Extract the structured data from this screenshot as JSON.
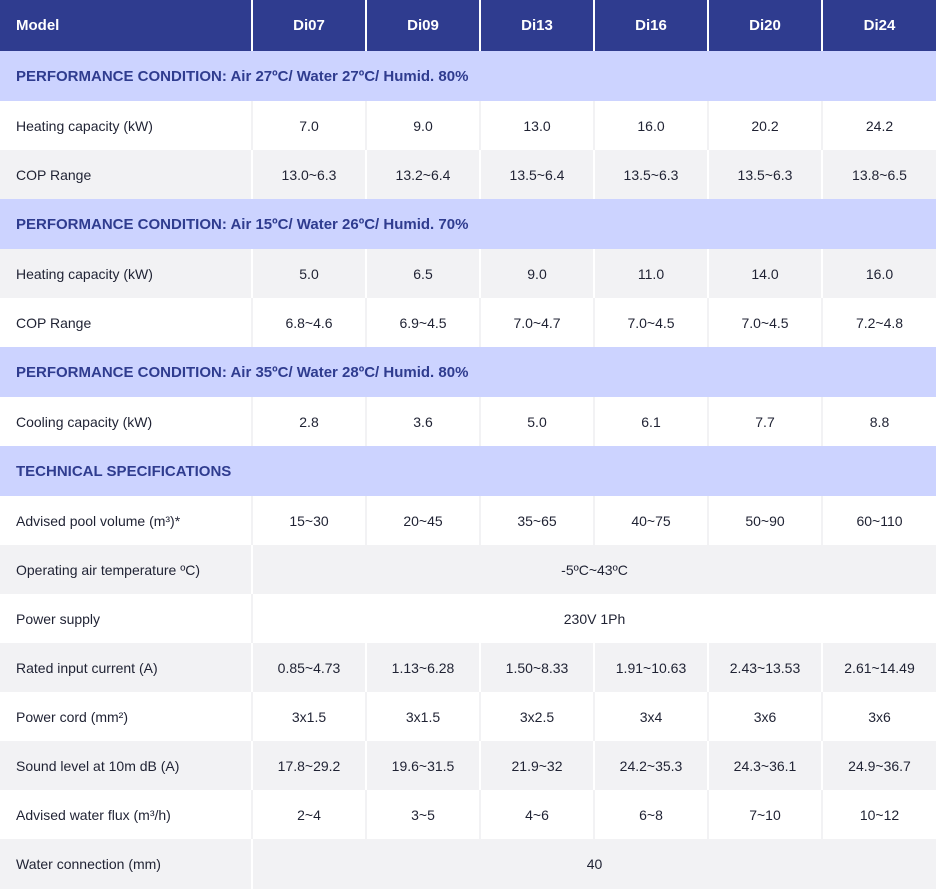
{
  "header": {
    "label": "Model",
    "models": [
      "Di07",
      "Di09",
      "Di13",
      "Di16",
      "Di20",
      "Di24"
    ]
  },
  "sections": [
    {
      "title": "PERFORMANCE CONDITION: Air 27ºC/ Water 27ºC/ Humid. 80%",
      "rows": [
        {
          "label": "Heating capacity (kW)",
          "values": [
            "7.0",
            "9.0",
            "13.0",
            "16.0",
            "20.2",
            "24.2"
          ]
        },
        {
          "label": "COP Range",
          "values": [
            "13.0~6.3",
            "13.2~6.4",
            "13.5~6.4",
            "13.5~6.3",
            "13.5~6.3",
            "13.8~6.5"
          ]
        }
      ]
    },
    {
      "title": "PERFORMANCE CONDITION: Air 15ºC/ Water 26ºC/ Humid. 70%",
      "rows": [
        {
          "label": "Heating capacity (kW)",
          "values": [
            "5.0",
            "6.5",
            "9.0",
            "11.0",
            "14.0",
            "16.0"
          ]
        },
        {
          "label": "COP Range",
          "values": [
            "6.8~4.6",
            "6.9~4.5",
            "7.0~4.7",
            "7.0~4.5",
            "7.0~4.5",
            "7.2~4.8"
          ]
        }
      ]
    },
    {
      "title": "PERFORMANCE CONDITION: Air 35ºC/ Water 28ºC/ Humid. 80%",
      "rows": [
        {
          "label": "Cooling capacity (kW)",
          "values": [
            "2.8",
            "3.6",
            "5.0",
            "6.1",
            "7.7",
            "8.8"
          ]
        }
      ]
    },
    {
      "title": "TECHNICAL SPECIFICATIONS",
      "rows": [
        {
          "label": "Advised pool volume (m³)*",
          "values": [
            "15~30",
            "20~45",
            "35~65",
            "40~75",
            "50~90",
            "60~110"
          ]
        },
        {
          "label": "Operating air temperature ºC)",
          "span": "-5ºC~43ºC"
        },
        {
          "label": "Power supply",
          "span": "230V 1Ph"
        },
        {
          "label": "Rated input current (A)",
          "values": [
            "0.85~4.73",
            "1.13~6.28",
            "1.50~8.33",
            "1.91~10.63",
            "2.43~13.53",
            "2.61~14.49"
          ]
        },
        {
          "label": "Power cord (mm²)",
          "values": [
            "3x1.5",
            "3x1.5",
            "3x2.5",
            "3x4",
            "3x6",
            "3x6"
          ]
        },
        {
          "label": "Sound level at 10m dB (A)",
          "values": [
            "17.8~29.2",
            "19.6~31.5",
            "21.9~32",
            "24.2~35.3",
            "24.3~36.1",
            "24.9~36.7"
          ]
        },
        {
          "label": "Advised water flux (m³/h)",
          "values": [
            "2~4",
            "3~5",
            "4~6",
            "6~8",
            "7~10",
            "10~12"
          ]
        },
        {
          "label": "Water connection (mm)",
          "span": "40"
        }
      ]
    }
  ]
}
